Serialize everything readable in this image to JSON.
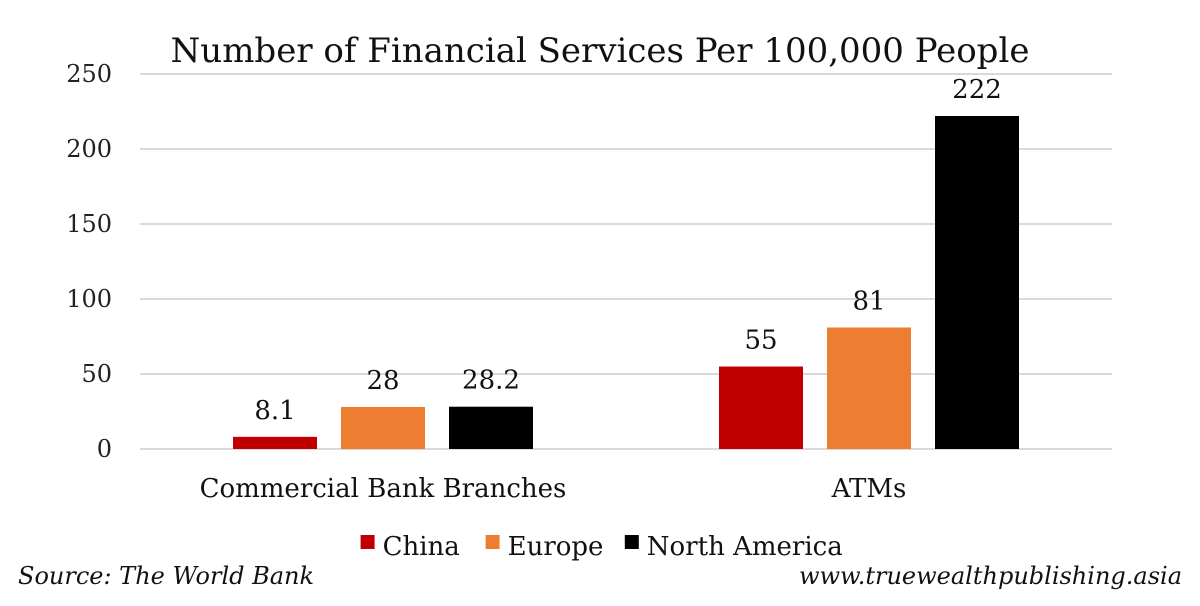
{
  "chart_data": {
    "type": "bar",
    "title": "Number of Financial Services Per 100,000 People",
    "categories": [
      "Commercial Bank Branches",
      "ATMs"
    ],
    "series": [
      {
        "name": "China",
        "color": "#c00000",
        "values": [
          8.1,
          55
        ],
        "labels": [
          "8.1",
          "55"
        ]
      },
      {
        "name": "Europe",
        "color": "#ed7d31",
        "values": [
          28,
          81
        ],
        "labels": [
          "28",
          "81"
        ]
      },
      {
        "name": "North America",
        "color": "#000000",
        "values": [
          28.2,
          222
        ],
        "labels": [
          "28.2",
          "222"
        ]
      }
    ],
    "ylim": [
      0,
      250
    ],
    "yticks": [
      0,
      50,
      100,
      150,
      200,
      250
    ],
    "ytick_labels": [
      "0",
      "50",
      "100",
      "150",
      "200",
      "250"
    ],
    "grid": true,
    "legend": "bottom",
    "xlabel": "",
    "ylabel": ""
  },
  "footer": {
    "source": "Source: The World Bank",
    "website": "www.truewealthpublishing.asia"
  }
}
